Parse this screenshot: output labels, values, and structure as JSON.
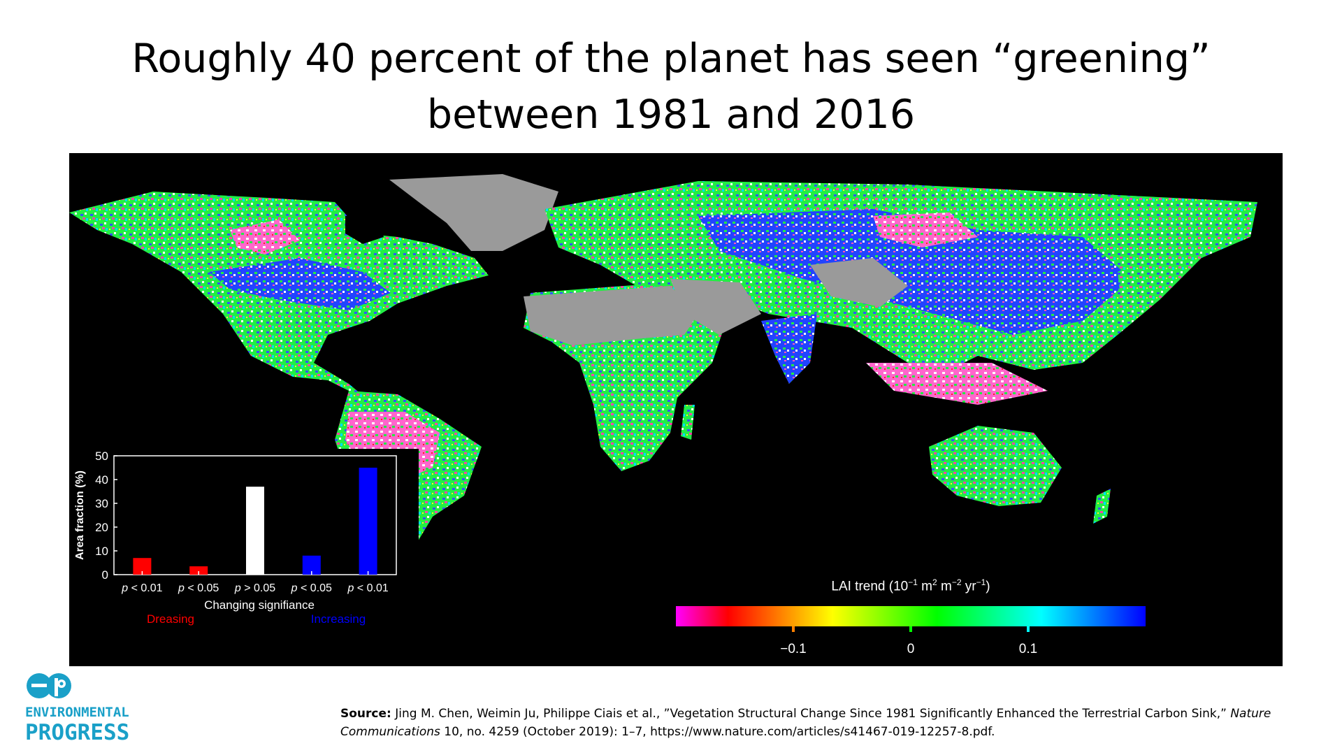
{
  "slide": {
    "title_line1": "Roughly 40 percent of the planet has seen “greening”",
    "title_line2": "between 1981 and 2016"
  },
  "colorbar": {
    "title_prefix": "LAI trend (10",
    "title_exp1": "−1",
    "title_mid1": " m",
    "title_exp2": "2",
    "title_mid2": " m",
    "title_exp3": "−2",
    "title_mid3": " yr",
    "title_exp4": "−1",
    "title_suffix": ")",
    "ticks": [
      {
        "label": "−0.1",
        "value": -0.1
      },
      {
        "label": "0",
        "value": 0
      },
      {
        "label": "0.1",
        "value": 0.1
      }
    ],
    "range": [
      -0.2,
      0.2
    ],
    "colors": [
      "#ff00ff",
      "#ff0000",
      "#ff8000",
      "#ffff00",
      "#80ff00",
      "#00ff00",
      "#00ff80",
      "#00ffff",
      "#0080ff",
      "#0000ff"
    ]
  },
  "chart_data": {
    "type": "bar",
    "categories": [
      "p < 0.01",
      "p < 0.05",
      "p > 0.05",
      "p < 0.05",
      "p < 0.01"
    ],
    "category_prefix": "p",
    "category_ops": [
      "< 0.01",
      "< 0.05",
      "> 0.05",
      "< 0.05",
      "< 0.01"
    ],
    "values": [
      7,
      3.5,
      37,
      8,
      45
    ],
    "bar_colors": [
      "#ff0000",
      "#ff0000",
      "#ffffff",
      "#0000ff",
      "#0000ff"
    ],
    "ylabel": "Area fraction (%)",
    "xlabel": "Changing signifiance",
    "ylim": [
      0,
      50
    ],
    "yticks": [
      0,
      10,
      20,
      30,
      40,
      50
    ],
    "group_labels": [
      {
        "text": "Dreasing",
        "color": "#ff0000"
      },
      {
        "text": "Increasing",
        "color": "#0000ff"
      }
    ]
  },
  "logo": {
    "line1": "ENVIRONMENTAL",
    "line2": "PROGRESS",
    "color": "#1aa0c8"
  },
  "source": {
    "label": "Source:",
    "text_a": " Jing M. Chen, Weimin Ju, Philippe Ciais et al., ”Vegetation Structural Change Since 1981 Significantly Enhanced the Terrestrial Carbon Sink,” ",
    "journal": "Nature Communications",
    "text_b": " 10, no. 4259 (October 2019): 1–7, https://www.nature.com/articles/s41467-019-12257-8.pdf."
  }
}
